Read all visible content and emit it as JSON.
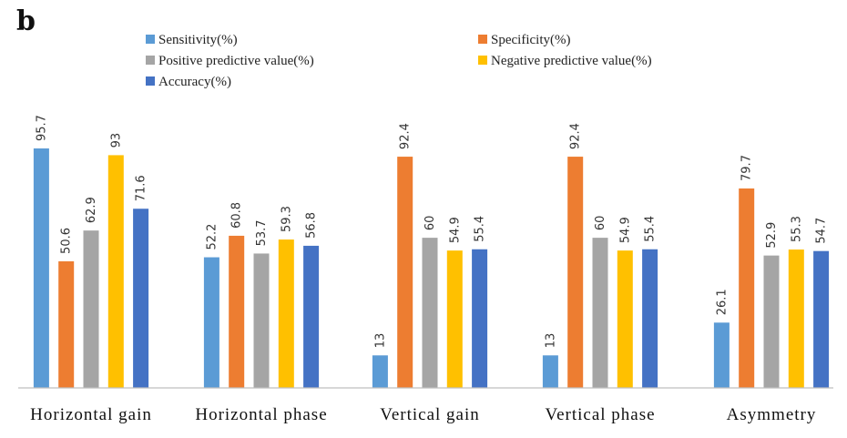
{
  "chart_data": {
    "type": "bar",
    "panel_label": "b",
    "categories": [
      "Horizontal gain",
      "Horizontal phase",
      "Vertical gain",
      "Vertical phase",
      "Asymmetry"
    ],
    "series": [
      {
        "name": "Sensitivity(%)",
        "color": "#5b9bd5",
        "values": [
          95.7,
          52.2,
          13,
          13,
          26.1
        ],
        "labels": [
          "95.7",
          "52.2",
          "13",
          "13",
          "26.1"
        ]
      },
      {
        "name": "Specificity(%)",
        "color": "#ed7d31",
        "values": [
          50.6,
          60.8,
          92.4,
          92.4,
          79.7
        ],
        "labels": [
          "50.6",
          "60.8",
          "92.4",
          "92.4",
          "79.7"
        ]
      },
      {
        "name": "Positive predictive value(%)",
        "color": "#a5a5a5",
        "values": [
          62.9,
          53.7,
          60,
          60,
          52.9
        ],
        "labels": [
          "62.9",
          "53.7",
          "60",
          "60",
          "52.9"
        ]
      },
      {
        "name": "Negative predictive value(%)",
        "color": "#ffc000",
        "values": [
          93,
          59.3,
          54.9,
          54.9,
          55.3
        ],
        "labels": [
          "93",
          "59.3",
          "54.9",
          "54.9",
          "55.3"
        ]
      },
      {
        "name": "Accuracy(%)",
        "color": "#4472c4",
        "values": [
          71.6,
          56.8,
          55.4,
          55.4,
          54.7
        ],
        "labels": [
          "71.6",
          "56.8",
          "55.4",
          "55.4",
          "54.7"
        ]
      }
    ],
    "ylim": [
      0,
      100
    ],
    "legend_position": "top-center",
    "grid": false
  }
}
